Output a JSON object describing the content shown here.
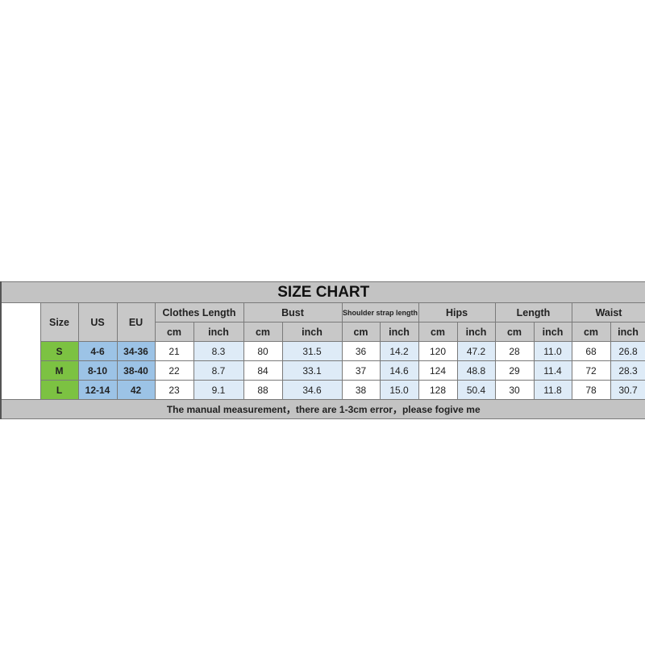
{
  "title": "SIZE CHART",
  "headers": {
    "size": "Size",
    "us": "US",
    "eu": "EU"
  },
  "groups": [
    "Clothes Length",
    "Bust",
    "Shoulder strap length",
    "Hips",
    "Length",
    "Waist"
  ],
  "units": {
    "cm": "cm",
    "inch": "inch"
  },
  "rows": [
    {
      "size": "S",
      "us": "4-6",
      "eu": "34-36",
      "values": [
        "21",
        "8.3",
        "80",
        "31.5",
        "36",
        "14.2",
        "120",
        "47.2",
        "28",
        "11.0",
        "68",
        "26.8"
      ]
    },
    {
      "size": "M",
      "us": "8-10",
      "eu": "38-40",
      "values": [
        "22",
        "8.7",
        "84",
        "33.1",
        "37",
        "14.6",
        "124",
        "48.8",
        "29",
        "11.4",
        "72",
        "28.3"
      ]
    },
    {
      "size": "L",
      "us": "12-14",
      "eu": "42",
      "values": [
        "23",
        "9.1",
        "88",
        "34.6",
        "38",
        "15.0",
        "128",
        "50.4",
        "30",
        "11.8",
        "78",
        "30.7"
      ]
    }
  ],
  "footer": "The manual measurement，there are 1-3cm error，please fogive me",
  "colors": {
    "size": "#7cc242",
    "region": "#9cc3e6",
    "inch": "#deebf7",
    "header": "#c8c8c8"
  }
}
